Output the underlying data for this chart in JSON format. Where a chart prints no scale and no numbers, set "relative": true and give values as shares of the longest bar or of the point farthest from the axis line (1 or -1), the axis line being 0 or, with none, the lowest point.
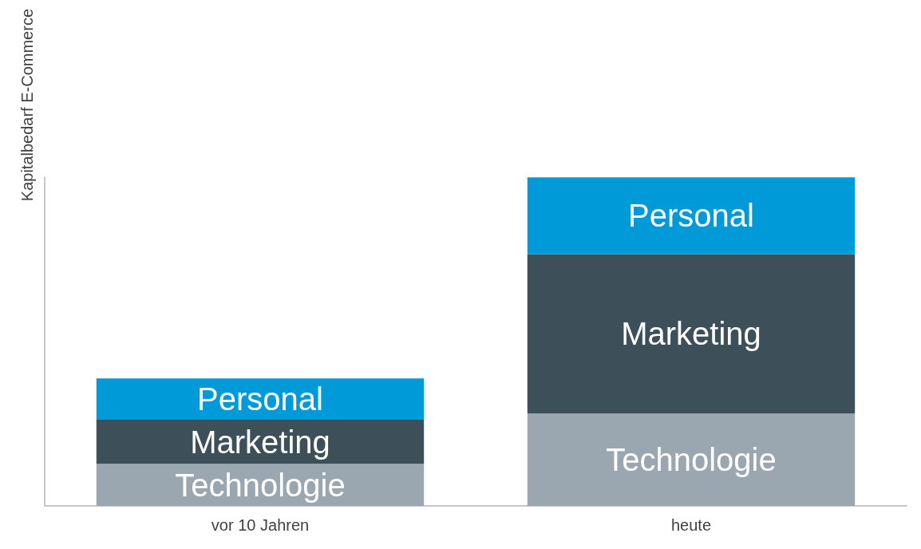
{
  "chart_data": {
    "type": "bar",
    "ylabel": "Kapitalbedarf E-Commerce",
    "categories": [
      "vor 10 Jahren",
      "heute"
    ],
    "stacked": true,
    "relative": true,
    "legend": false,
    "grid": false,
    "series": [
      {
        "name": "Technologie",
        "color": "#9aa7b1",
        "values": [
          0.128,
          0.281
        ]
      },
      {
        "name": "Marketing",
        "color": "#3d4f58",
        "values": [
          0.134,
          0.485
        ]
      },
      {
        "name": "Personal",
        "color": "#009ad8",
        "values": [
          0.126,
          0.234
        ]
      }
    ]
  }
}
